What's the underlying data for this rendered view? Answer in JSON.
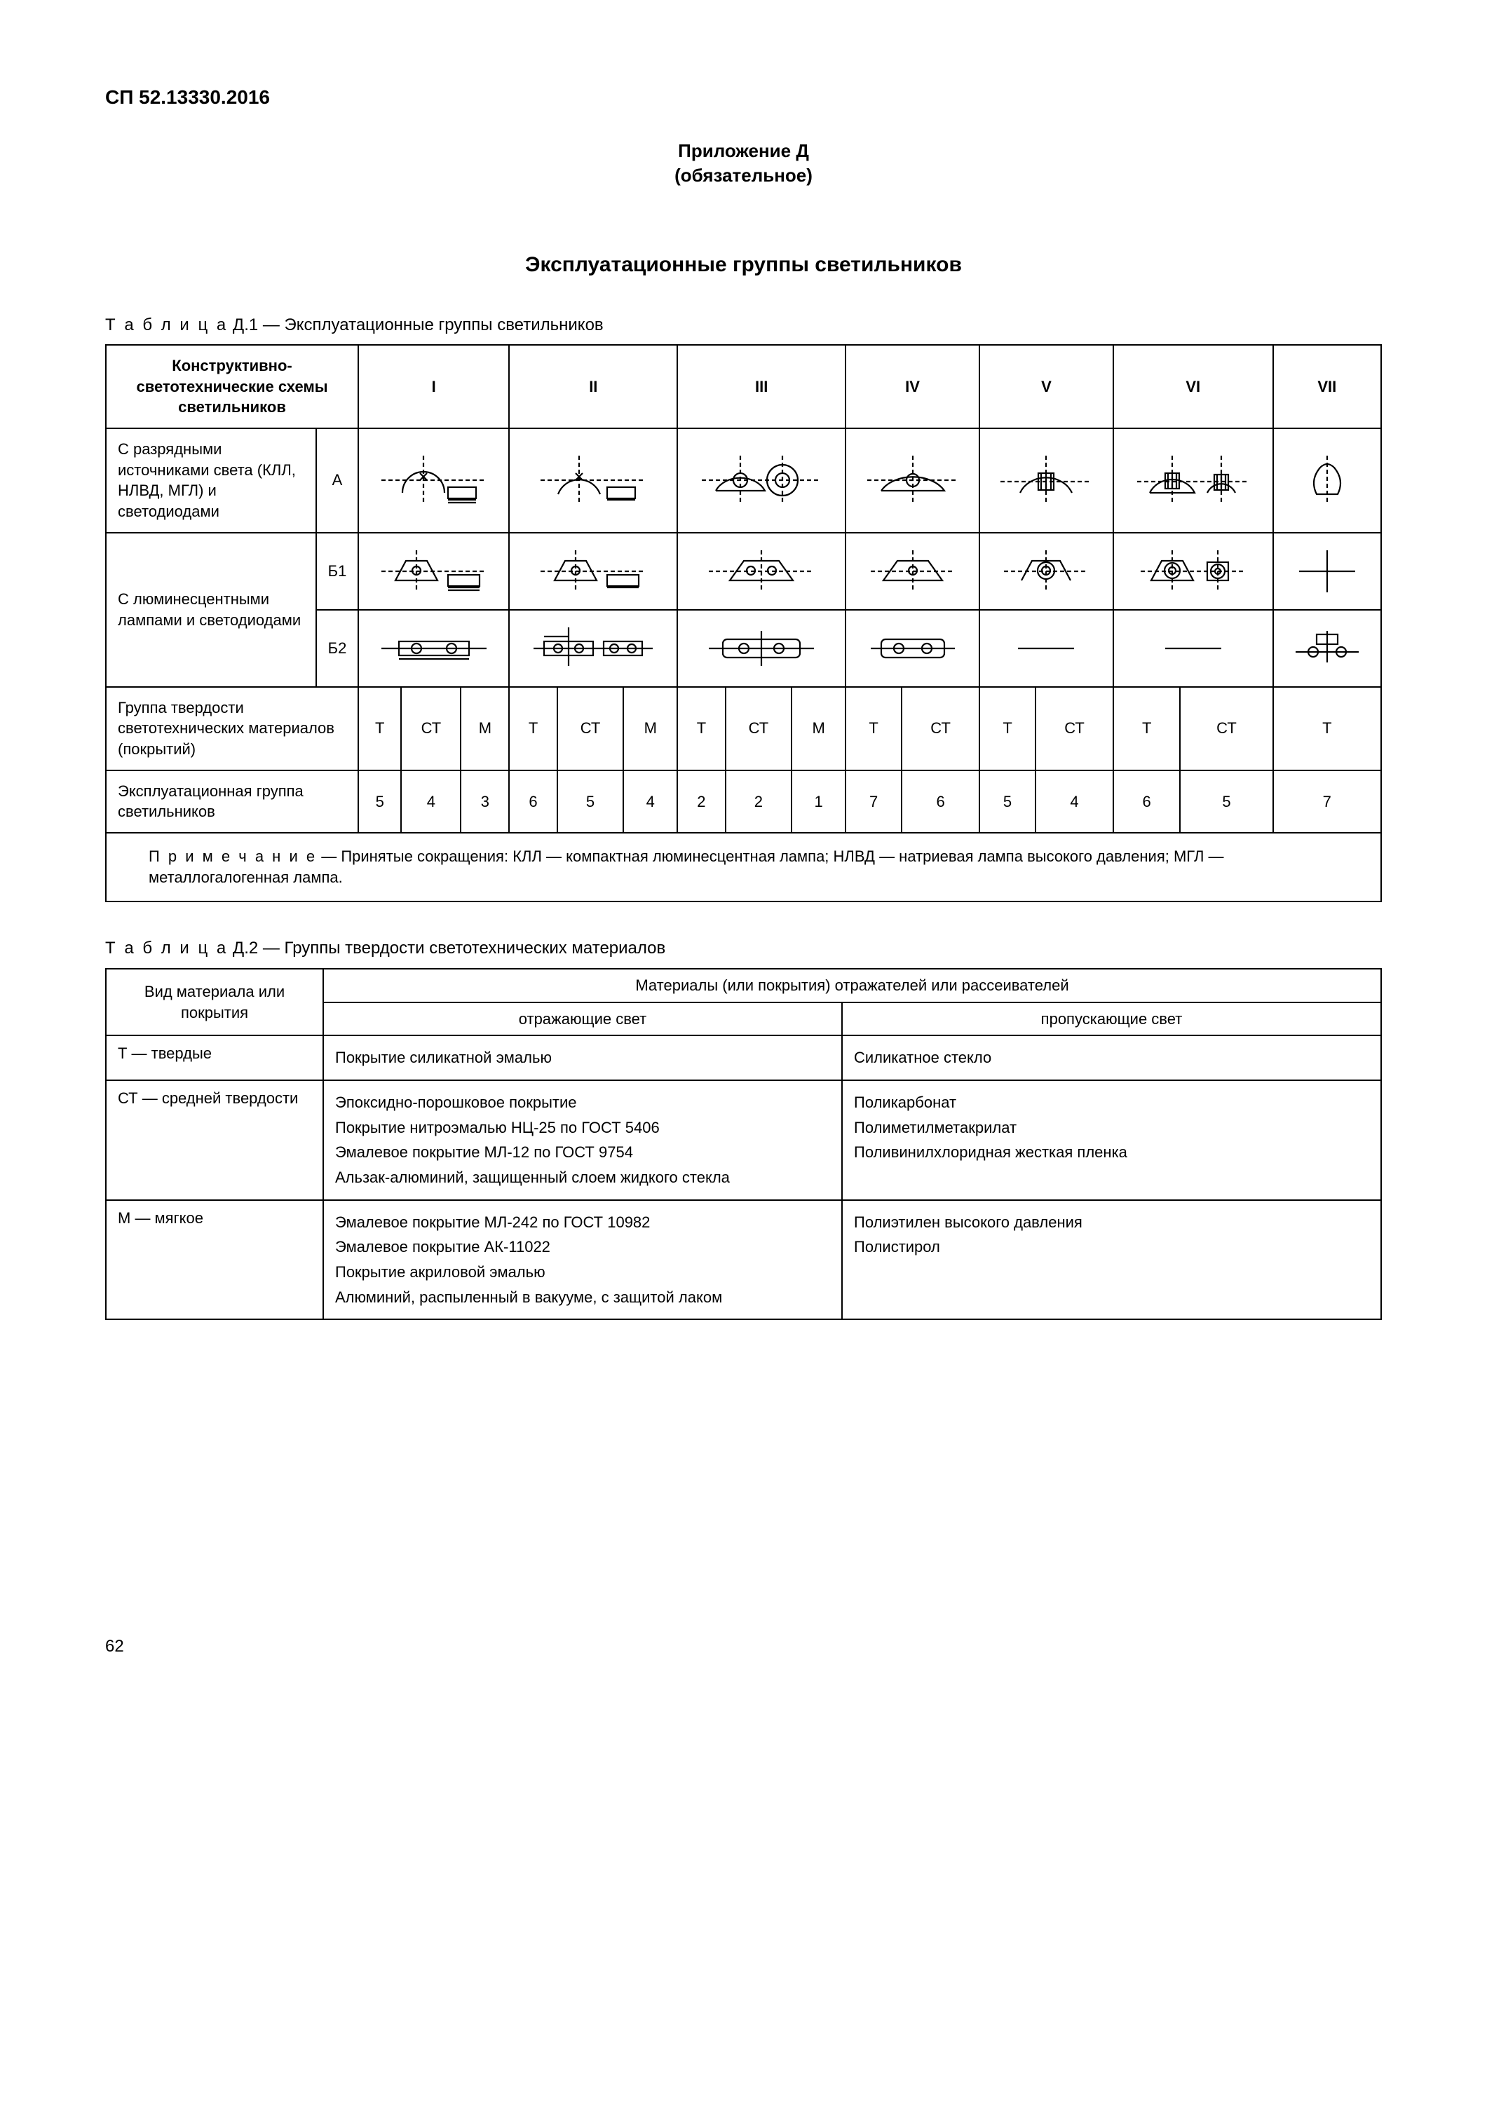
{
  "doc_code": "СП 52.13330.2016",
  "appendix_line1": "Приложение Д",
  "appendix_line2": "(обязательное)",
  "main_title": "Эксплуатационные группы светильников",
  "table1": {
    "caption_prefix": "Т а б л и ц а",
    "caption_rest": "  Д.1 — Эксплуатационные группы светильников",
    "header_col0": "Конструктивно-светотехнические схемы светильников",
    "roman": [
      "I",
      "II",
      "III",
      "IV",
      "V",
      "VI",
      "VII"
    ],
    "rowA_label": "С разрядными источниками света (КЛЛ, НЛВД, МГЛ) и светодиодами",
    "rowA_code": "А",
    "rowB_label": "С люминесцентными лампами и светодиодами",
    "rowB1_code": "Б1",
    "rowB2_code": "Б2",
    "hardness_label": "Группа твердости светотехнических материалов (покрытий)",
    "hardness_cells": [
      "Т",
      "СТ",
      "М",
      "Т",
      "СТ",
      "М",
      "Т",
      "СТ",
      "М",
      "Т",
      "СТ",
      "Т",
      "СТ",
      "Т",
      "СТ",
      "Т"
    ],
    "group_label": "Эксплуатационная группа светильников",
    "group_cells": [
      "5",
      "4",
      "3",
      "6",
      "5",
      "4",
      "2",
      "2",
      "1",
      "7",
      "6",
      "5",
      "4",
      "6",
      "5",
      "7"
    ],
    "note_prefix": "П р и м е ч а н и е",
    "note_rest": " — Принятые сокращения: КЛЛ — компактная люминесцентная лампа; НЛВД — натриевая лампа высокого давления; МГЛ — металлогалогенная лампа."
  },
  "table2": {
    "caption_prefix": "Т а б л и ц а",
    "caption_rest": "  Д.2 — Группы твердости светотехнических материалов",
    "hdr_col0": "Вид материала или покрытия",
    "hdr_top": "Материалы (или покрытия) отражателей или рассеивателей",
    "hdr_reflect": "отражающие свет",
    "hdr_transmit": "пропускающие свет",
    "rows": [
      {
        "kind": "Т — твердые",
        "reflect": [
          "Покрытие силикатной эмалью"
        ],
        "transmit": [
          "Силикатное стекло"
        ]
      },
      {
        "kind": "СТ — средней твердости",
        "reflect": [
          "Эпоксидно-порошковое покрытие",
          "Покрытие нитроэмалью НЦ-25 по ГОСТ 5406",
          "Эмалевое покрытие МЛ-12 по ГОСТ 9754",
          "Альзак-алюминий, защищенный слоем жидкого стекла"
        ],
        "transmit": [
          "Поликарбонат",
          "Полиметилметакрилат",
          "Поливинилхлоридная жесткая пленка"
        ]
      },
      {
        "kind": "М — мягкое",
        "reflect": [
          "Эмалевое покрытие МЛ-242 по ГОСТ 10982",
          "Эмалевое покрытие АК-11022",
          "Покрытие акриловой эмалью",
          "Алюминий, распыленный в вакууме, с защитой лаком"
        ],
        "transmit": [
          "Полиэтилен высокого давления",
          "Полистирол"
        ]
      }
    ]
  },
  "page_number": "62",
  "svg": {
    "stroke": "#000",
    "stroke_width": 2.2,
    "diagram_w": 150,
    "diagram_h": 80
  }
}
